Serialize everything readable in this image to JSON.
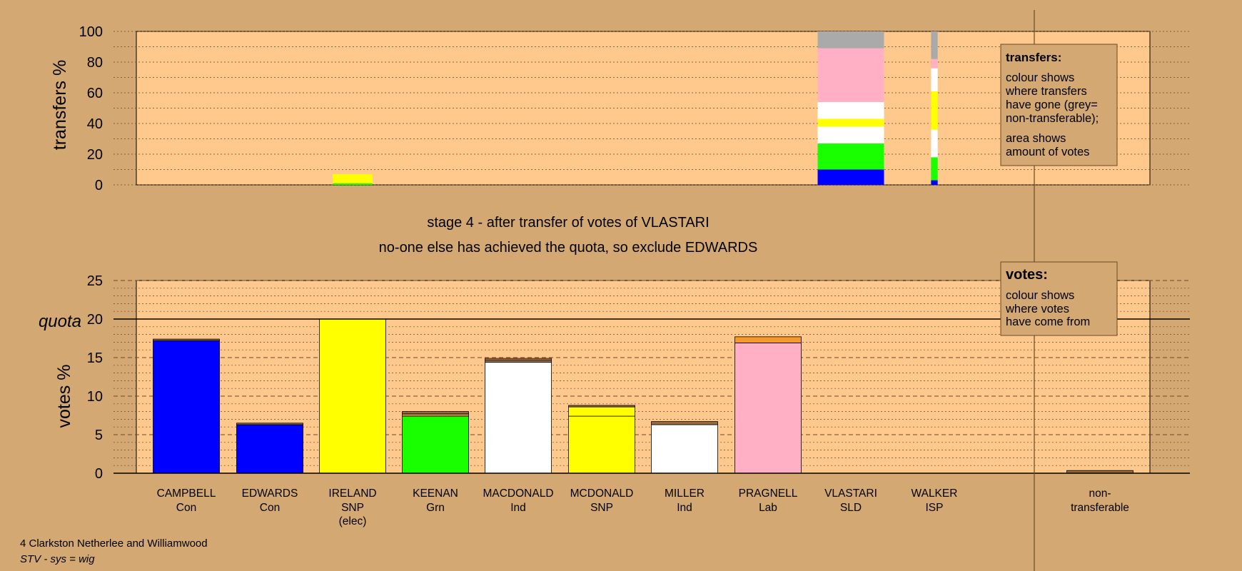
{
  "stage": {
    "line1": "stage 4 - after transfer of votes of VLASTARI",
    "line2": "no-one else has achieved the quota, so exclude EDWARDS"
  },
  "footer": {
    "ward": "4 Clarkston Netherlee and Williamwood",
    "system": "STV - sys = wig"
  },
  "legend_transfers": {
    "title": "transfers:",
    "lines": [
      "colour shows",
      "where transfers",
      "have gone (grey=",
      "non-transferable);",
      "area shows",
      "amount of votes"
    ]
  },
  "legend_votes": {
    "title": "votes:",
    "lines": [
      "colour shows",
      "where votes",
      "have come from"
    ]
  },
  "colors": {
    "background": "#d3a872",
    "plot": "#ffc88c",
    "Con": "#0000ff",
    "SNP": "#ffff00",
    "Grn": "#19ff00",
    "Ind": "#ffffff",
    "Lab": "#ffb0c4",
    "nontransferable": "#aaaaaa",
    "brown": "#9a6b3b",
    "orange": "#f59a2a"
  },
  "chart_data": [
    {
      "type": "bar",
      "stacked": true,
      "title": "",
      "ylabel": "transfers %",
      "ylim": [
        0,
        100
      ],
      "yticks": [
        0,
        20,
        40,
        60,
        80,
        100
      ],
      "bars": [
        {
          "x": "IRELAND",
          "width_share": 0.06,
          "segments": [
            {
              "label": "Grn",
              "color": "#19ff00",
              "value": 1
            },
            {
              "label": "SNP",
              "color": "#ffff00",
              "value": 6
            }
          ]
        },
        {
          "x": "VLASTARI",
          "width_share": 0.1,
          "segments": [
            {
              "label": "Con",
              "color": "#0000ff",
              "value": 10
            },
            {
              "label": "Grn",
              "color": "#19ff00",
              "value": 17
            },
            {
              "label": "Ind",
              "color": "#ffffff",
              "value": 11
            },
            {
              "label": "SNP",
              "color": "#ffff00",
              "value": 5
            },
            {
              "label": "Ind",
              "color": "#ffffff",
              "value": 11
            },
            {
              "label": "Lab",
              "color": "#ffb0c4",
              "value": 35
            },
            {
              "label": "non-transferable",
              "color": "#aaaaaa",
              "value": 11
            }
          ]
        },
        {
          "x": "WALKER",
          "width_share": 0.025,
          "segments": [
            {
              "label": "Con",
              "color": "#0000ff",
              "value": 3
            },
            {
              "label": "Grn",
              "color": "#19ff00",
              "value": 15
            },
            {
              "label": "Ind",
              "color": "#ffffff",
              "value": 18
            },
            {
              "label": "SNP",
              "color": "#ffff00",
              "value": 25
            },
            {
              "label": "Ind",
              "color": "#ffffff",
              "value": 15
            },
            {
              "label": "Lab",
              "color": "#ffb0c4",
              "value": 6
            },
            {
              "label": "non-transferable",
              "color": "#aaaaaa",
              "value": 18
            }
          ]
        }
      ]
    },
    {
      "type": "bar",
      "stacked": true,
      "title": "",
      "ylabel": "votes %",
      "ylim": [
        0,
        25
      ],
      "yticks": [
        0,
        5,
        10,
        15,
        20,
        25
      ],
      "quota": 20,
      "quota_label": "quota",
      "categories": [
        {
          "name": "CAMPBELL",
          "party": "Con",
          "extra": ""
        },
        {
          "name": "EDWARDS",
          "party": "Con",
          "extra": ""
        },
        {
          "name": "IRELAND",
          "party": "SNP",
          "extra": "(elec)"
        },
        {
          "name": "KEENAN",
          "party": "Grn",
          "extra": ""
        },
        {
          "name": "MACDONALD",
          "party": "Ind",
          "extra": ""
        },
        {
          "name": "MCDONALD",
          "party": "SNP",
          "extra": ""
        },
        {
          "name": "MILLER",
          "party": "Ind",
          "extra": ""
        },
        {
          "name": "PRAGNELL",
          "party": "Lab",
          "extra": ""
        },
        {
          "name": "VLASTARI",
          "party": "SLD",
          "extra": ""
        },
        {
          "name": "WALKER",
          "party": "ISP",
          "extra": ""
        }
      ],
      "nontransferable_label": [
        "non-",
        "transferable"
      ],
      "bars": [
        {
          "x": "CAMPBELL",
          "segments": [
            {
              "label": "Con",
              "color": "#0000ff",
              "value": 17.2
            },
            {
              "label": "transfer",
              "color": "#9a6b3b",
              "value": 0.2
            }
          ]
        },
        {
          "x": "EDWARDS",
          "segments": [
            {
              "label": "Con",
              "color": "#0000ff",
              "value": 6.3
            },
            {
              "label": "transfer",
              "color": "#9a6b3b",
              "value": 0.2
            }
          ]
        },
        {
          "x": "IRELAND",
          "segments": [
            {
              "label": "SNP",
              "color": "#ffff00",
              "value": 20.0
            }
          ]
        },
        {
          "x": "KEENAN",
          "segments": [
            {
              "label": "Grn",
              "color": "#19ff00",
              "value": 7.4
            },
            {
              "label": "transfer",
              "color": "#d88c45",
              "value": 0.3
            },
            {
              "label": "transfer",
              "color": "#9a6b3b",
              "value": 0.3
            }
          ]
        },
        {
          "x": "MACDONALD",
          "segments": [
            {
              "label": "Ind",
              "color": "#ffffff",
              "value": 14.4
            },
            {
              "label": "transfer",
              "color": "#9a6b3b",
              "value": 0.3
            },
            {
              "label": "transfer",
              "color": "#d88c45",
              "value": 0.2
            }
          ]
        },
        {
          "x": "MCDONALD",
          "segments": [
            {
              "label": "SNP",
              "color": "#ffff00",
              "value": 7.4
            },
            {
              "label": "SNP",
              "color": "#ffff00",
              "value": 1.2
            },
            {
              "label": "transfer",
              "color": "#9a6b3b",
              "value": 0.2
            }
          ]
        },
        {
          "x": "MILLER",
          "segments": [
            {
              "label": "Ind",
              "color": "#ffffff",
              "value": 6.3
            },
            {
              "label": "transfer",
              "color": "#9a6b3b",
              "value": 0.4
            }
          ]
        },
        {
          "x": "PRAGNELL",
          "segments": [
            {
              "label": "Lab",
              "color": "#ffb0c4",
              "value": 16.9
            },
            {
              "label": "transfer",
              "color": "#f59a2a",
              "value": 0.8
            }
          ]
        },
        {
          "x": "VLASTARI",
          "segments": []
        },
        {
          "x": "WALKER",
          "segments": []
        },
        {
          "x": "non-transferable",
          "segments": [
            {
              "label": "non-transferable",
              "color": "#9a6b3b",
              "value": 0.35
            }
          ]
        }
      ]
    }
  ]
}
